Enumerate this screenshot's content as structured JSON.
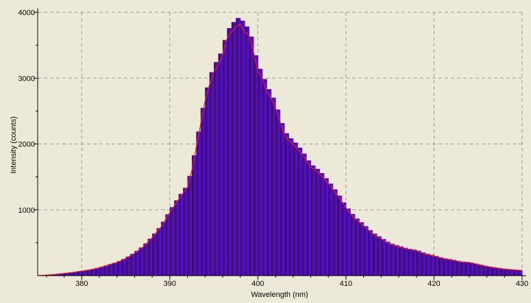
{
  "chart_data": {
    "type": "area",
    "title": "",
    "xlabel": "Wavelength (nm)",
    "ylabel": "Intensity (counts)",
    "xlim": [
      375,
      430
    ],
    "ylim": [
      0,
      4000
    ],
    "x_ticks": [
      "380",
      "390",
      "400",
      "410",
      "420",
      "430"
    ],
    "y_ticks": [
      "1000",
      "2000",
      "3000",
      "4000"
    ],
    "grid": true,
    "colors": {
      "background": "#ece9d8",
      "spectrum_start": "#3d0b4f",
      "spectrum_end": "#5a12ff",
      "curve": "#e8202e",
      "grid": "#999999",
      "axis": "#000000"
    },
    "series": [
      {
        "x": [
          375,
          377,
          379,
          380,
          381,
          382,
          383,
          384,
          385,
          386,
          387,
          388,
          389,
          390,
          391,
          392,
          392.5,
          393,
          393.5,
          394,
          394.5,
          395,
          395.5,
          396,
          396.5,
          397,
          397.5,
          398,
          398.5,
          399,
          399.5,
          400,
          400.5,
          401,
          401.5,
          402,
          402.5,
          403,
          403.5,
          404,
          405,
          406,
          407,
          408,
          409,
          410,
          411,
          412,
          413,
          414,
          415,
          416,
          417,
          418,
          419,
          420,
          421,
          422,
          423,
          424,
          425,
          426,
          427,
          428,
          429,
          430
        ],
        "values": [
          0,
          20,
          50,
          70,
          90,
          120,
          160,
          200,
          260,
          340,
          440,
          580,
          740,
          960,
          1160,
          1340,
          1600,
          1950,
          2300,
          2650,
          2900,
          3100,
          3200,
          3350,
          3600,
          3700,
          3780,
          3820,
          3700,
          3650,
          3400,
          3100,
          3000,
          2800,
          2700,
          2550,
          2350,
          2150,
          2050,
          2000,
          1850,
          1650,
          1550,
          1400,
          1230,
          1030,
          870,
          760,
          640,
          560,
          480,
          440,
          400,
          380,
          330,
          300,
          260,
          240,
          210,
          200,
          170,
          140,
          120,
          100,
          90,
          80
        ]
      }
    ]
  }
}
